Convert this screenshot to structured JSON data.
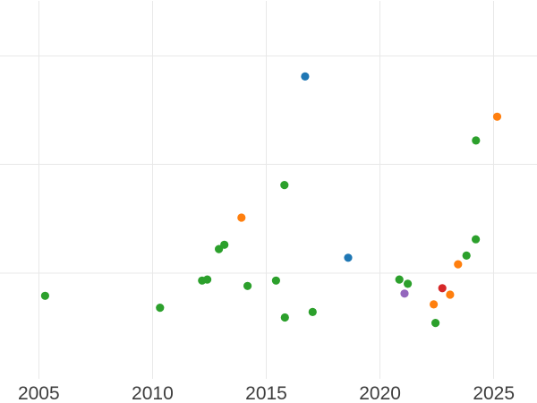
{
  "chart_data": {
    "type": "scatter",
    "title": "",
    "xlabel": "",
    "ylabel": "",
    "grid": true,
    "legend_visible": false,
    "x_axis": {
      "tick_labels": [
        "2005",
        "2010",
        "2015",
        "2020",
        "2025"
      ],
      "tick_values": [
        2005,
        2010,
        2015,
        2020,
        2025
      ],
      "range": [
        2003.3,
        2026.9
      ]
    },
    "y_axis": {
      "tick_labels": [],
      "labels_visible": false,
      "gridline_values": [
        1,
        2,
        3
      ],
      "range": [
        0.02,
        3.52
      ]
    },
    "colors": {
      "background": "#ffffff",
      "grid": "#e8e8e8",
      "tick_label": "#3d3d3d",
      "green": "#2ca02c",
      "orange": "#ff7f0e",
      "blue": "#1f77b4",
      "red": "#d62728",
      "purple": "#9467bd"
    },
    "series": [
      {
        "name": "green",
        "color": "#2ca02c",
        "points": [
          [
            2005.28,
            0.79
          ],
          [
            2010.33,
            0.68
          ],
          [
            2012.18,
            0.93
          ],
          [
            2012.41,
            0.94
          ],
          [
            2012.92,
            1.22
          ],
          [
            2013.16,
            1.26
          ],
          [
            2014.18,
            0.88
          ],
          [
            2015.43,
            0.93
          ],
          [
            2015.8,
            1.81
          ],
          [
            2015.82,
            0.59
          ],
          [
            2017.04,
            0.64
          ],
          [
            2020.85,
            0.94
          ],
          [
            2021.22,
            0.9
          ],
          [
            2022.44,
            0.54
          ],
          [
            2023.8,
            1.16
          ],
          [
            2024.21,
            1.31
          ],
          [
            2024.22,
            2.22
          ]
        ]
      },
      {
        "name": "orange",
        "color": "#ff7f0e",
        "points": [
          [
            2013.91,
            1.51
          ],
          [
            2022.36,
            0.71
          ],
          [
            2023.08,
            0.8
          ],
          [
            2023.43,
            1.08
          ],
          [
            2025.15,
            2.44
          ]
        ]
      },
      {
        "name": "blue",
        "color": "#1f77b4",
        "points": [
          [
            2016.71,
            2.81
          ],
          [
            2018.6,
            1.14
          ]
        ]
      },
      {
        "name": "red",
        "color": "#d62728",
        "points": [
          [
            2022.74,
            0.86
          ]
        ]
      },
      {
        "name": "purple",
        "color": "#9467bd",
        "points": [
          [
            2021.08,
            0.81
          ]
        ]
      }
    ]
  }
}
